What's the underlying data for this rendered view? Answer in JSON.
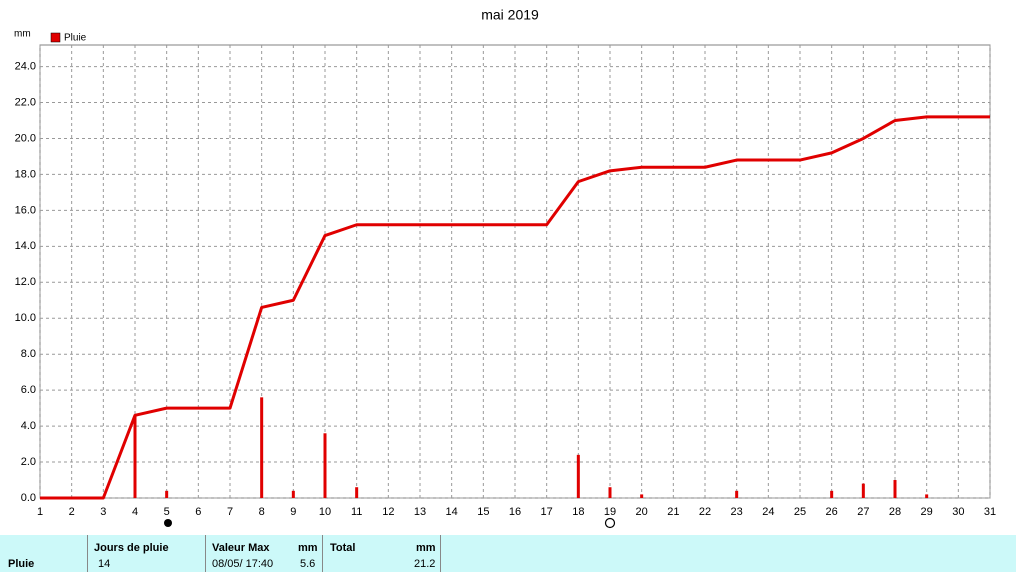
{
  "chart_data": {
    "type": "combo",
    "title": "mai 2019",
    "y_unit": "mm",
    "x": [
      1,
      2,
      3,
      4,
      5,
      6,
      7,
      8,
      9,
      10,
      11,
      12,
      13,
      14,
      15,
      16,
      17,
      18,
      19,
      20,
      21,
      22,
      23,
      24,
      25,
      26,
      27,
      28,
      29,
      30,
      31
    ],
    "series": [
      {
        "name": "Pluie",
        "style": "bar",
        "color": "#e00000",
        "values": [
          null,
          null,
          null,
          4.6,
          0.4,
          null,
          null,
          5.6,
          0.4,
          3.6,
          0.6,
          null,
          null,
          null,
          null,
          null,
          null,
          2.4,
          0.6,
          0.2,
          null,
          null,
          0.4,
          null,
          null,
          0.4,
          0.8,
          1.0,
          0.2,
          null,
          null
        ]
      },
      {
        "style": "line",
        "color": "#e00000",
        "values": [
          0,
          0,
          0,
          4.6,
          5.0,
          5.0,
          5.0,
          10.6,
          11.0,
          14.6,
          15.2,
          15.2,
          15.2,
          15.2,
          15.2,
          15.2,
          15.2,
          17.6,
          18.2,
          18.4,
          18.4,
          18.4,
          18.8,
          18.8,
          18.8,
          19.2,
          20.0,
          21.0,
          21.2,
          21.2,
          21.2
        ]
      }
    ],
    "xlim": [
      1,
      31
    ],
    "xticks": [
      1,
      2,
      3,
      4,
      5,
      6,
      7,
      8,
      9,
      10,
      11,
      12,
      13,
      14,
      15,
      16,
      17,
      18,
      19,
      20,
      21,
      22,
      23,
      24,
      25,
      26,
      27,
      28,
      29,
      30,
      31
    ],
    "ylim": [
      0,
      25.2
    ],
    "yticks": [
      {
        "value": 0,
        "label": "0.0"
      },
      {
        "value": 2,
        "label": "2.0"
      },
      {
        "value": 4,
        "label": "4.0"
      },
      {
        "value": 6,
        "label": "6.0"
      },
      {
        "value": 8,
        "label": "8.0"
      },
      {
        "value": 10,
        "label": "10.0"
      },
      {
        "value": 12,
        "label": "12.0"
      },
      {
        "value": 14,
        "label": "14.0"
      },
      {
        "value": 16,
        "label": "16.0"
      },
      {
        "value": 18,
        "label": "18.0"
      },
      {
        "value": 20,
        "label": "20.0"
      },
      {
        "value": 22,
        "label": "22.0"
      },
      {
        "value": 24,
        "label": "24.0"
      }
    ],
    "grid": true
  },
  "table": {
    "row_label": "Pluie",
    "headers": [
      "Jours de pluie",
      "Valeur Max",
      "mm",
      "Total",
      "mm"
    ],
    "values": [
      "14",
      "08/05/ 17:40",
      "5.6",
      "21.2"
    ]
  }
}
